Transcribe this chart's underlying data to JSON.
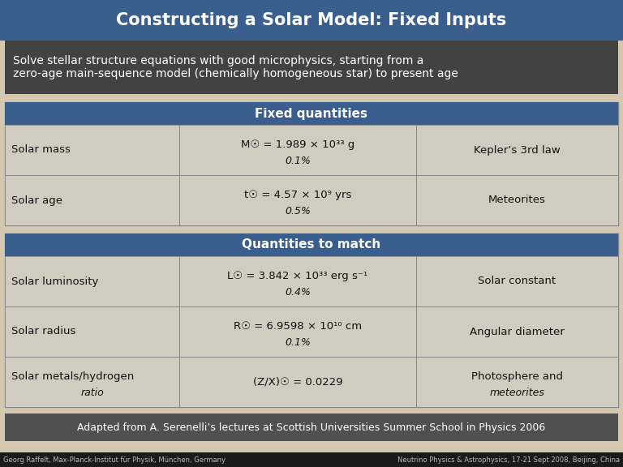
{
  "title": "Constructing a Solar Model: Fixed Inputs",
  "title_bg": "#3a5f8f",
  "title_color": "#ffffff",
  "subtitle": "Solve stellar structure equations with good microphysics, starting from a\nzero-age main-sequence model (chemically homogeneous star) to present age",
  "subtitle_bg": "#424242",
  "subtitle_color": "#ffffff",
  "bg_color": "#d4c9b0",
  "header_bg": "#3a5f8f",
  "header_color": "#ffffff",
  "row_bg": "#d0ccbf",
  "border_color": "#888888",
  "cell_text_color": "#111111",
  "fixed_header": "Fixed quantities",
  "fixed_rows": [
    [
      "Solar mass",
      "M☉ = 1.989 × 10³³ g\n0.1%",
      "Kepler’s 3rd law"
    ],
    [
      "Solar age",
      "t☉ = 4.57 × 10⁹ yrs\n0.5%",
      "Meteorites"
    ]
  ],
  "match_header": "Quantities to match",
  "match_rows": [
    [
      "Solar luminosity",
      "L☉ = 3.842 × 10³³ erg s⁻¹\n0.4%",
      "Solar constant"
    ],
    [
      "Solar radius",
      "R☉ = 6.9598 × 10¹⁰ cm\n0.1%",
      "Angular diameter"
    ],
    [
      "Solar metals/hydrogen\nratio",
      "(Z/X)☉ = 0.0229",
      "Photosphere and\nmeteorites"
    ]
  ],
  "footer": "Adapted from A. Serenelli’s lectures at Scottish Universities Summer School in Physics 2006",
  "footer_bg": "#505050",
  "footer_color": "#ffffff",
  "bottom_left": "Georg Raffelt, Max-Planck-Institut für Physik, München, Germany",
  "bottom_right": "Neutrino Physics & Astrophysics, 17-21 Sept 2008, Beijing, China",
  "bottom_color": "#bbbbbb",
  "bottom_bg": "#1a1a1a"
}
